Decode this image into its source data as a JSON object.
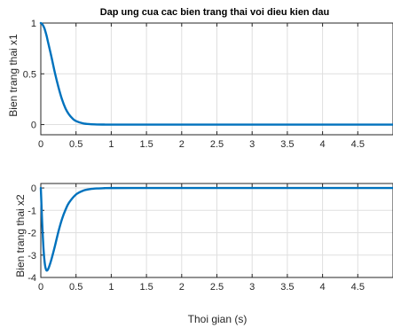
{
  "chart_data": [
    {
      "type": "line",
      "title": "Dap ung cua cac bien trang thai voi dieu kien dau",
      "xlabel": "",
      "ylabel": "Bien trang thai x1",
      "xlim": [
        0,
        5
      ],
      "ylim": [
        -0.1,
        1
      ],
      "xticks": [
        0,
        0.5,
        1,
        1.5,
        2,
        2.5,
        3,
        3.5,
        4,
        4.5
      ],
      "xtick_labels": [
        "0",
        "0.5",
        "1",
        "1.5",
        "2",
        "2.5",
        "3",
        "3.5",
        "4",
        "4.5"
      ],
      "yticks": [
        0,
        0.5,
        1
      ],
      "ytick_labels": [
        "0",
        "0.5",
        "1"
      ],
      "grid": true,
      "line_color": "#0072BD",
      "x": [
        0,
        0.02,
        0.05,
        0.08,
        0.1,
        0.15,
        0.2,
        0.25,
        0.3,
        0.35,
        0.4,
        0.45,
        0.5,
        0.6,
        0.7,
        0.8,
        0.9,
        1.0,
        1.5,
        2,
        3,
        4,
        5
      ],
      "y": [
        1.0,
        0.99,
        0.95,
        0.88,
        0.82,
        0.67,
        0.51,
        0.37,
        0.25,
        0.16,
        0.1,
        0.06,
        0.035,
        0.012,
        0.004,
        0.001,
        0.0003,
        0,
        0,
        0,
        0,
        0,
        0
      ]
    },
    {
      "type": "line",
      "title": "",
      "xlabel": "Thoi gian (s)",
      "ylabel": "Bien trang thai x2",
      "xlim": [
        0,
        5
      ],
      "ylim": [
        -4,
        0.2
      ],
      "xticks": [
        0,
        0.5,
        1,
        1.5,
        2,
        2.5,
        3,
        3.5,
        4,
        4.5
      ],
      "xtick_labels": [
        "0",
        "0.5",
        "1",
        "1.5",
        "2",
        "2.5",
        "3",
        "3.5",
        "4",
        "4.5"
      ],
      "yticks": [
        -4,
        -3,
        -2,
        -1,
        0
      ],
      "ytick_labels": [
        "-4",
        "-3",
        "-2",
        "-1",
        "0"
      ],
      "grid": true,
      "line_color": "#0072BD",
      "x": [
        0,
        0.01,
        0.02,
        0.04,
        0.06,
        0.08,
        0.1,
        0.12,
        0.15,
        0.2,
        0.25,
        0.3,
        0.35,
        0.4,
        0.5,
        0.6,
        0.7,
        0.8,
        0.9,
        1.0,
        1.5,
        2,
        3,
        4,
        5
      ],
      "y": [
        0,
        -0.8,
        -1.6,
        -2.8,
        -3.45,
        -3.68,
        -3.65,
        -3.5,
        -3.2,
        -2.6,
        -1.95,
        -1.4,
        -0.98,
        -0.66,
        -0.29,
        -0.12,
        -0.05,
        -0.02,
        -0.008,
        -0.003,
        0,
        0,
        0,
        0,
        0
      ]
    }
  ]
}
